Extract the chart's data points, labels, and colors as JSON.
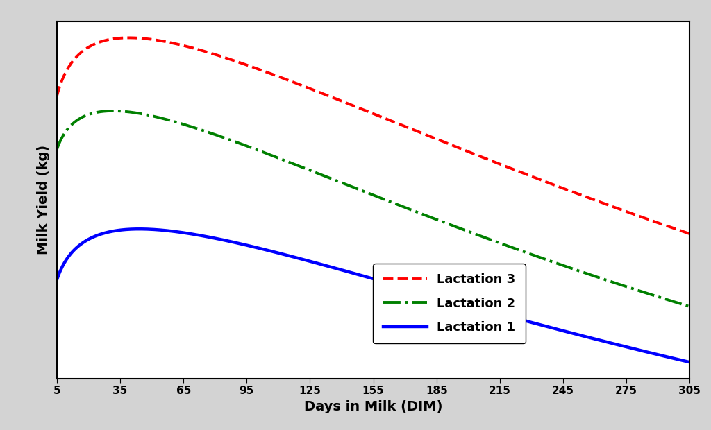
{
  "title": "",
  "xlabel": "Days in Milk (DIM)",
  "ylabel": "Milk Yield (kg)",
  "xticks": [
    5,
    35,
    65,
    95,
    125,
    155,
    185,
    215,
    245,
    275,
    305
  ],
  "xlim": [
    5,
    305
  ],
  "background_color": "#ffffff",
  "outer_background": "#d3d3d3",
  "curves": [
    {
      "label": "Lactation 3",
      "color": "#ff0000",
      "linestyle": "--",
      "linewidth": 2.8,
      "a": 40.0,
      "b": 0.1,
      "c": 0.00255
    },
    {
      "label": "Lactation 2",
      "color": "#008000",
      "linestyle": "-.",
      "linewidth": 2.8,
      "a": 36.0,
      "b": 0.09,
      "c": 0.00285
    },
    {
      "label": "Lactation 1",
      "color": "#0000ff",
      "linestyle": "-",
      "linewidth": 3.2,
      "a": 23.0,
      "b": 0.13,
      "c": 0.00295
    }
  ],
  "legend_fontsize": 13,
  "xlabel_fontsize": 14,
  "ylabel_fontsize": 14,
  "tick_fontsize": 11
}
